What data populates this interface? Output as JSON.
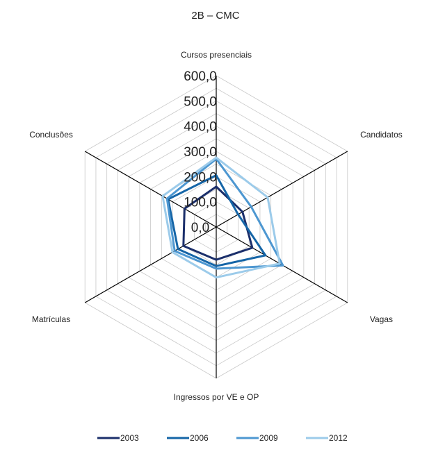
{
  "chart_data": {
    "type": "radar",
    "title": "2B – CMC",
    "axes": [
      "Cursos presenciais",
      "Candidatos",
      "Vagas",
      "Ingressos por VE e OP",
      "Matrículas",
      "Conclusões"
    ],
    "rlim": [
      0,
      600
    ],
    "ticks": [
      "0,0",
      "100,0",
      "200,0",
      "300,0",
      "400,0",
      "500,0",
      "600,0"
    ],
    "grid": true,
    "legend_position": "bottom",
    "series": [
      {
        "name": "2003",
        "color": "#1b2f6b",
        "values": [
          160,
          120,
          165,
          130,
          150,
          145
        ]
      },
      {
        "name": "2006",
        "color": "#1565a7",
        "values": [
          205,
          100,
          225,
          155,
          175,
          220
        ]
      },
      {
        "name": "2009",
        "color": "#4d97d1",
        "values": [
          270,
          160,
          305,
          165,
          190,
          225
        ]
      },
      {
        "name": "2012",
        "color": "#9ccbea",
        "values": [
          275,
          235,
          290,
          200,
          200,
          245
        ]
      }
    ]
  }
}
